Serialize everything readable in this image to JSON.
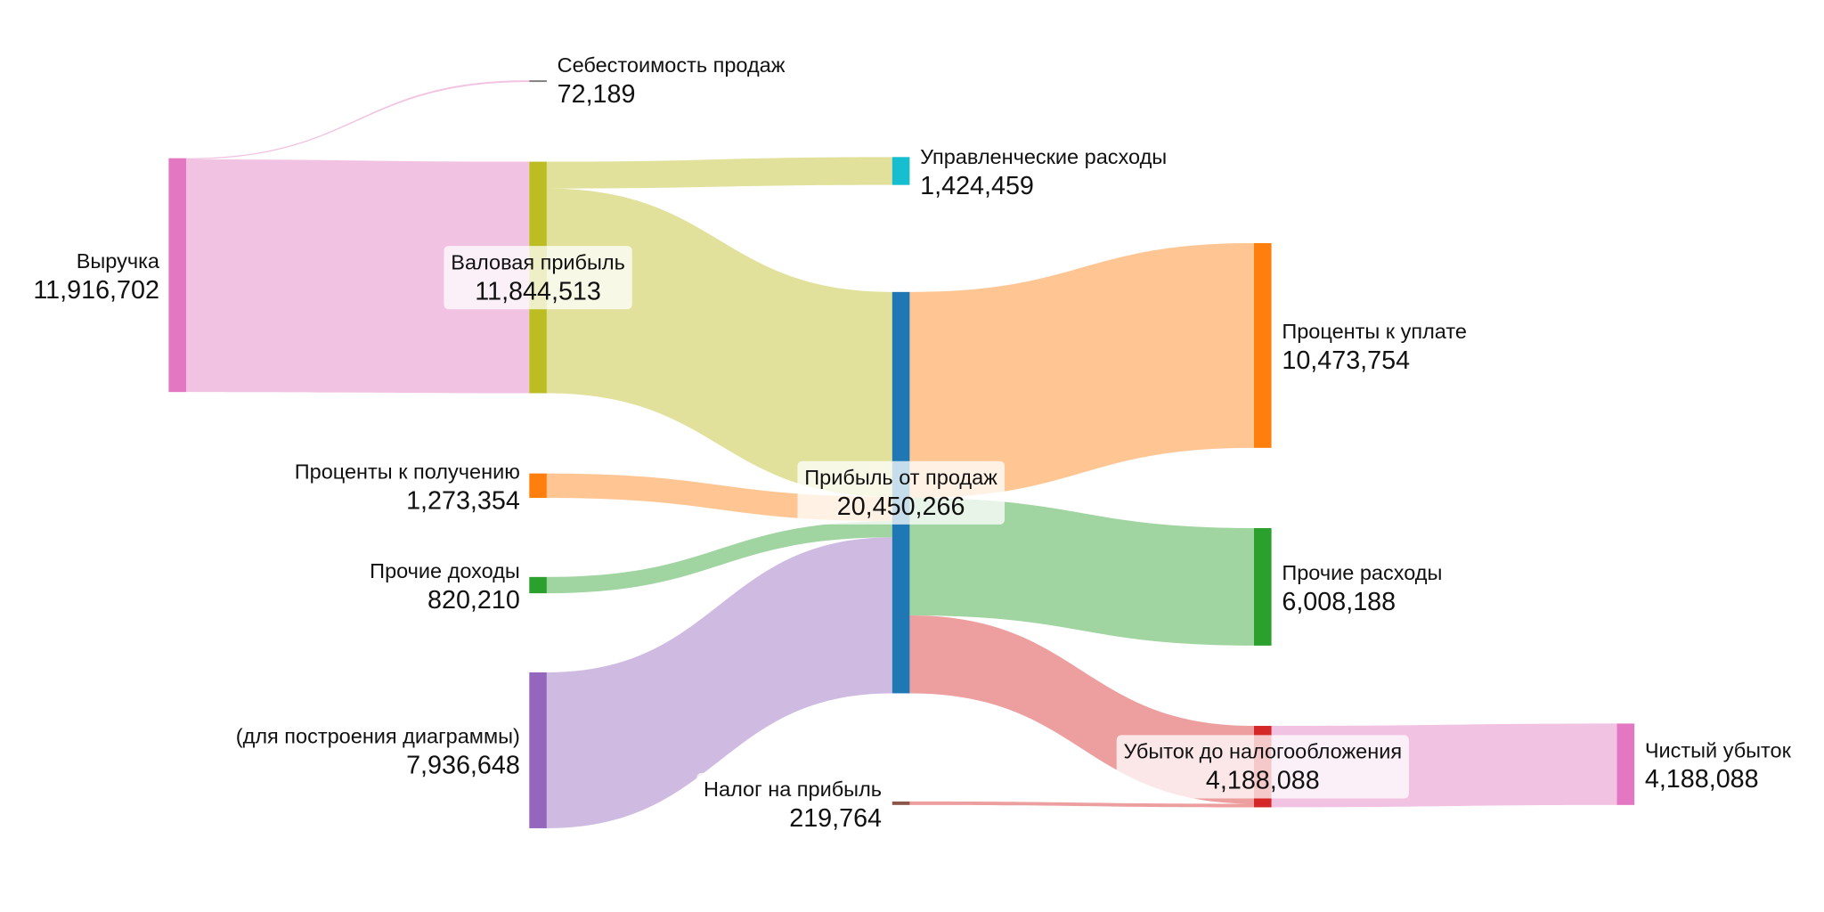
{
  "chart_data": {
    "type": "sankey",
    "colors": {
      "pink": "#e377c2",
      "olive": "#bcbd22",
      "cyan": "#17becf",
      "blue": "#1f77b4",
      "orange": "#ff7f0e",
      "green": "#2ca02c",
      "purple": "#9467bd",
      "brown": "#8c564b",
      "red": "#d62728",
      "gray": "#7f7f7f"
    },
    "nodes": [
      {
        "id": "revenue",
        "label": "Выручка",
        "value": "11,916,702",
        "color": "#e377c2"
      },
      {
        "id": "cogs",
        "label": "Себестоимость продаж",
        "value": "72,189",
        "color": "#7f7f7f"
      },
      {
        "id": "gross",
        "label": "Валовая прибыль",
        "value": "11,844,513",
        "color": "#bcbd22"
      },
      {
        "id": "admin",
        "label": "Управленческие расходы",
        "value": "1,424,459",
        "color": "#17becf"
      },
      {
        "id": "opprofit",
        "label": "Прибыль от продаж",
        "value": "20,450,266",
        "color": "#1f77b4"
      },
      {
        "id": "intinc",
        "label": "Проценты к получению",
        "value": "1,273,354",
        "color": "#ff7f0e"
      },
      {
        "id": "othinc",
        "label": "Прочие доходы",
        "value": "820,210",
        "color": "#2ca02c"
      },
      {
        "id": "aux",
        "label": "(для построения диаграммы)",
        "value": "7,936,648",
        "color": "#9467bd"
      },
      {
        "id": "tax",
        "label": "Налог на прибыль",
        "value": "219,764",
        "color": "#8c564b"
      },
      {
        "id": "intexp",
        "label": "Проценты к уплате",
        "value": "10,473,754",
        "color": "#ff7f0e"
      },
      {
        "id": "othexp",
        "label": "Прочие расходы",
        "value": "6,008,188",
        "color": "#2ca02c"
      },
      {
        "id": "pretax",
        "label": "Убыток до налогообложения",
        "value": "4,188,088",
        "color": "#d62728"
      },
      {
        "id": "netloss",
        "label": "Чистый убыток",
        "value": "4,188,088",
        "color": "#e377c2"
      }
    ],
    "links": [
      {
        "source": "revenue",
        "target": "cogs",
        "value": 72189,
        "color": "#e377c2"
      },
      {
        "source": "revenue",
        "target": "gross",
        "value": 11844513,
        "color": "#e377c2"
      },
      {
        "source": "gross",
        "target": "admin",
        "value": 1424459,
        "color": "#bcbd22"
      },
      {
        "source": "gross",
        "target": "opprofit",
        "value": 10420054,
        "color": "#bcbd22"
      },
      {
        "source": "intinc",
        "target": "opprofit",
        "value": 1273354,
        "color": "#ff7f0e"
      },
      {
        "source": "othinc",
        "target": "opprofit",
        "value": 820210,
        "color": "#2ca02c"
      },
      {
        "source": "aux",
        "target": "opprofit",
        "value": 7936648,
        "color": "#9467bd"
      },
      {
        "source": "opprofit",
        "target": "intexp",
        "value": 10473754,
        "color": "#ff7f0e"
      },
      {
        "source": "opprofit",
        "target": "othexp",
        "value": 6008188,
        "color": "#2ca02c"
      },
      {
        "source": "opprofit",
        "target": "pretax",
        "value": 3968324,
        "color": "#d62728"
      },
      {
        "source": "tax",
        "target": "pretax",
        "value": 219764,
        "color": "#d62728"
      },
      {
        "source": "pretax",
        "target": "netloss",
        "value": 4188088,
        "color": "#e377c2"
      }
    ]
  }
}
